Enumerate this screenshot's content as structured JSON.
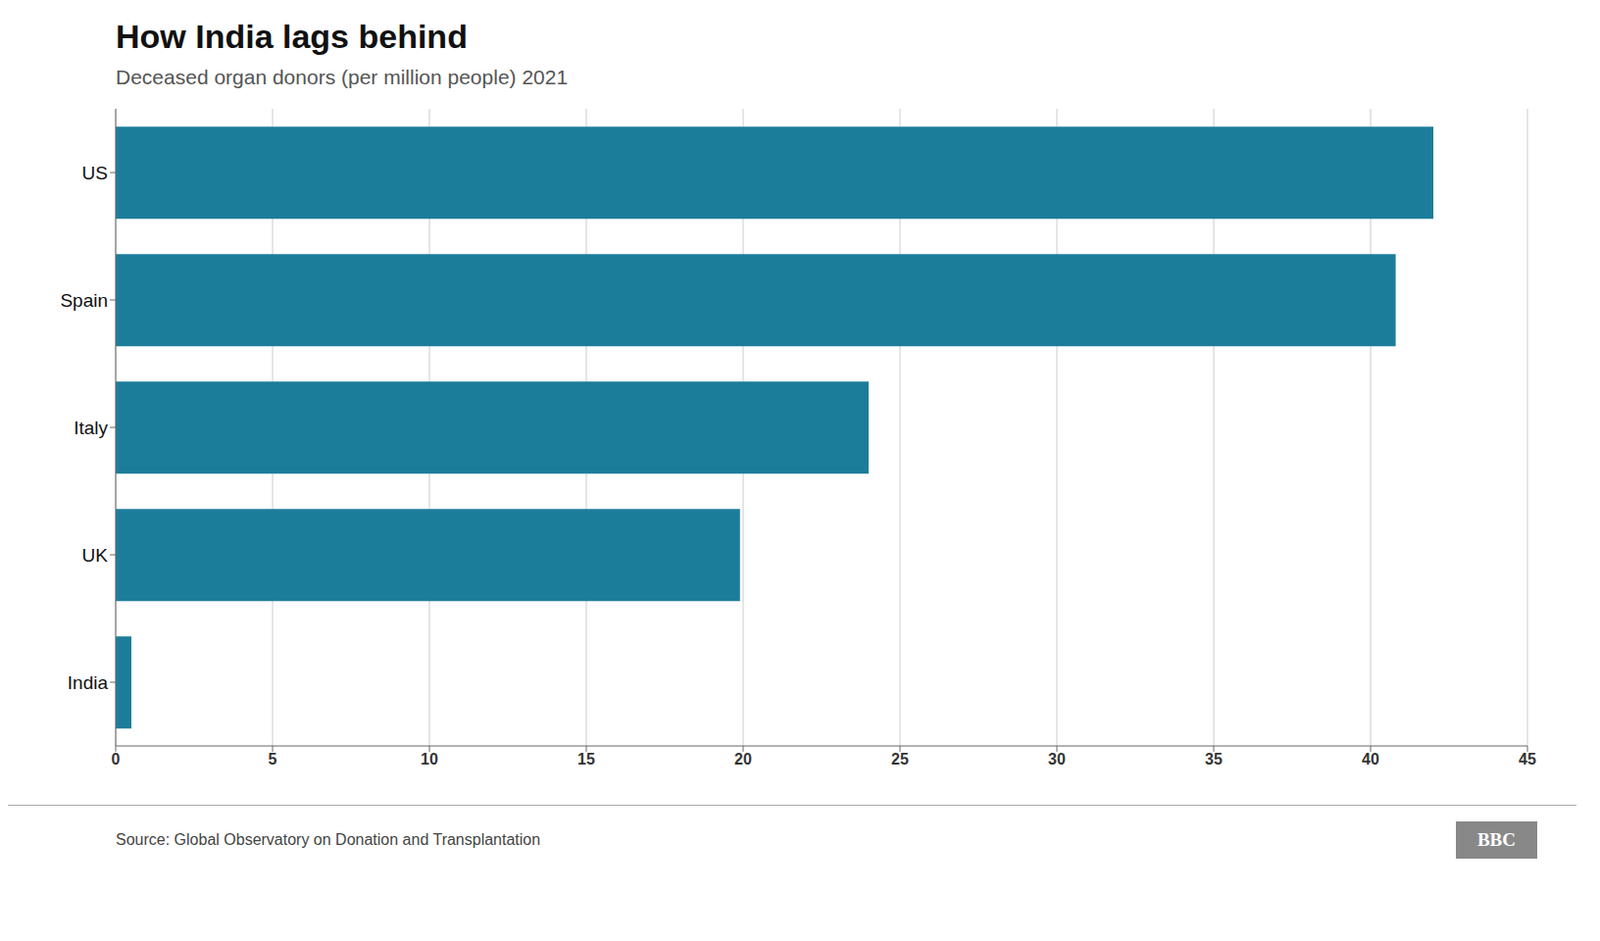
{
  "chart_data": {
    "type": "bar",
    "title": "How India lags behind",
    "subtitle": "Deceased organ donors (per million people) 2021",
    "annotations": [
      "Source: Global Observatory on Donation and Transplantation",
      "BBC"
    ],
    "categories": [
      "US",
      "Spain",
      "Italy",
      "UK",
      "India"
    ],
    "values": [
      42.0,
      40.8,
      24.0,
      19.9,
      0.5
    ],
    "color": "#1c7d9b",
    "orientation": "horizontal",
    "xlim": [
      0,
      45
    ],
    "xticks": [
      0,
      5,
      10,
      15,
      20,
      25,
      30,
      35,
      40,
      45
    ],
    "grid": true
  }
}
